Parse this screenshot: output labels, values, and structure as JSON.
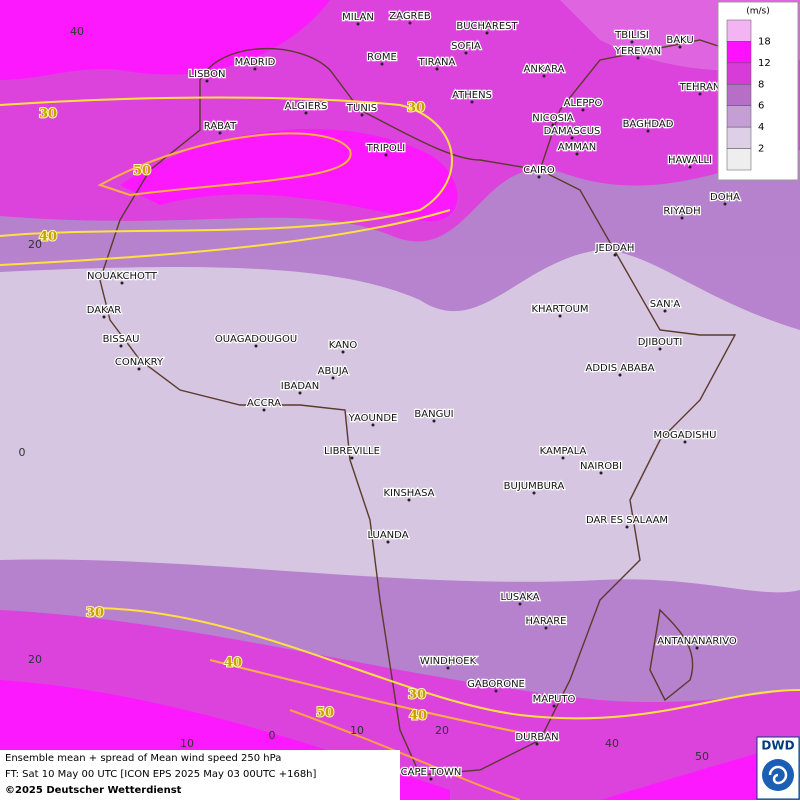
{
  "map": {
    "cities": [
      "MILAN",
      "ZAGREB",
      "BUCHAREST",
      "TBILISI",
      "BAKU",
      "SOFIA",
      "YEREVAN",
      "MADRID",
      "ROME",
      "TIRANA",
      "ANKARA",
      "LISBON",
      "TEHRAN",
      "ATHENS",
      "ALGIERS",
      "TUNIS",
      "ALEPPO",
      "NICOSIA",
      "BAGHDAD",
      "RABAT",
      "DAMASCUS",
      "TRIPOLI",
      "AMMAN",
      "HAWALLI",
      "CAIRO",
      "DOHA",
      "RIYADH",
      "JEDDAH",
      "NOUAKCHOTT",
      "SAN'A",
      "KHARTOUM",
      "DAKAR",
      "DJIBOUTI",
      "BISSAU",
      "OUAGADOUGOU",
      "KANO",
      "CONAKRY",
      "ADDIS ABABA",
      "ABUJA",
      "IBADAN",
      "ACCRA",
      "YAOUNDE",
      "BANGUI",
      "MOGADISHU",
      "LIBREVILLE",
      "KAMPALA",
      "NAIROBI",
      "BUJUMBURA",
      "KINSHASA",
      "DAR ES SALAAM",
      "LUANDA",
      "LUSAKA",
      "HARARE",
      "ANTANANARIVO",
      "WINDHOEK",
      "GABORONE",
      "MAPUTO",
      "DURBAN",
      "CAPE TOWN"
    ],
    "contour_labels": [
      30,
      30,
      50,
      40,
      30,
      40,
      30,
      50,
      40
    ],
    "graticule_labels": [
      "40",
      "20",
      "0",
      "20",
      "10",
      "0",
      "10",
      "20",
      "40",
      "50"
    ]
  },
  "legend": {
    "unit": "(m/s)",
    "ticks": [
      18,
      12,
      8,
      6,
      4,
      2
    ],
    "colors": [
      "#f4b4f4",
      "#ff10ff",
      "#d83cd8",
      "#b66ec6",
      "#c59ed6",
      "#dccfe6",
      "#eeeeee"
    ]
  },
  "caption": [
    "Ensemble mean + spread of Mean wind speed 250 hPa",
    "FT: Sat 10 May 00 UTC [ICON EPS 2025 May 03 00UTC +168h]",
    "©2025 Deutscher Wetterdienst"
  ],
  "logo": "DWD"
}
